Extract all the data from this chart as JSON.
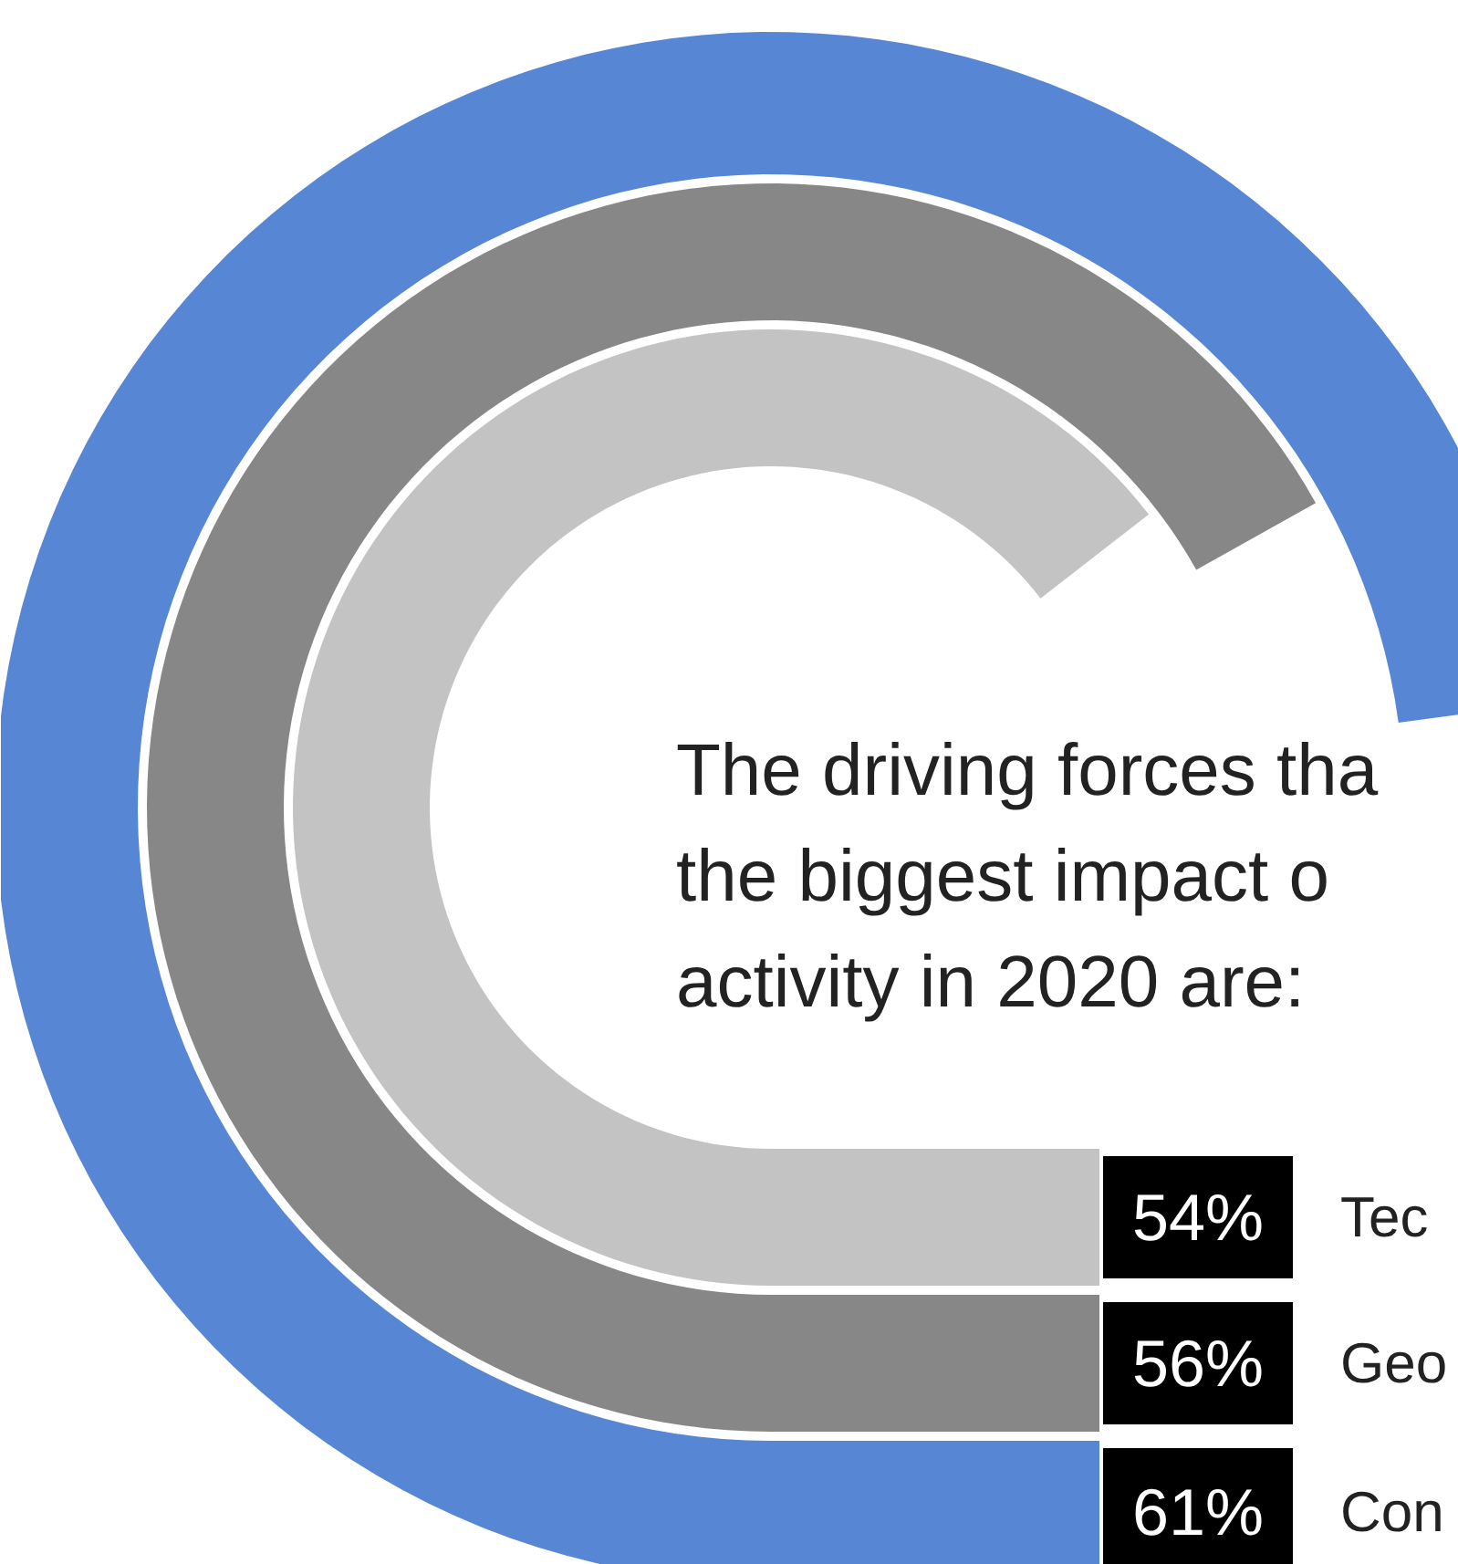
{
  "chart_data": {
    "type": "other",
    "title": "The driving forces tha\nthe biggest impact o\nactivity in 2020 are:",
    "categories": [
      "Tec",
      "Geo",
      "Con"
    ],
    "values": [
      54,
      56,
      61
    ],
    "value_labels": [
      "54%",
      "56%",
      "61%"
    ],
    "colors": [
      "#c3c3c3",
      "#878787",
      "#5787d4"
    ]
  }
}
